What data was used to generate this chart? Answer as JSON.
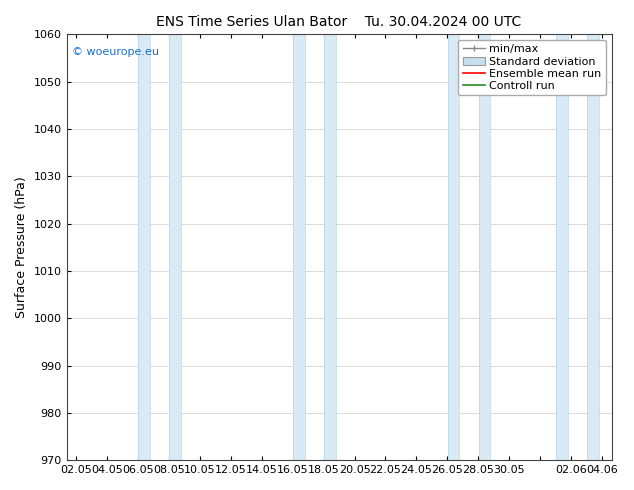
{
  "title_left": "ENS Time Series Ulan Bator",
  "title_right": "Tu. 30.04.2024 00 UTC",
  "ylabel": "Surface Pressure (hPa)",
  "ylim": [
    970,
    1060
  ],
  "yticks": [
    970,
    980,
    990,
    1000,
    1010,
    1020,
    1030,
    1040,
    1050,
    1060
  ],
  "xtick_labels": [
    "02.05",
    "04.05",
    "06.05",
    "08.05",
    "10.05",
    "12.05",
    "14.05",
    "16.05",
    "18.05",
    "20.05",
    "22.05",
    "24.05",
    "26.05",
    "28.05",
    "30.05",
    "",
    "02.06",
    "04.06"
  ],
  "copyright": "© woeurope.eu",
  "legend_entries": [
    "min/max",
    "Standard deviation",
    "Ensemble mean run",
    "Controll run"
  ],
  "band_color": "#daeaf5",
  "band_edge_color": "#b8d4e8",
  "background_color": "#ffffff",
  "plot_bg_color": "#ffffff",
  "figsize": [
    6.34,
    4.9
  ],
  "dpi": 100,
  "title_fontsize": 10,
  "ylabel_fontsize": 9,
  "tick_fontsize": 8,
  "legend_fontsize": 8
}
